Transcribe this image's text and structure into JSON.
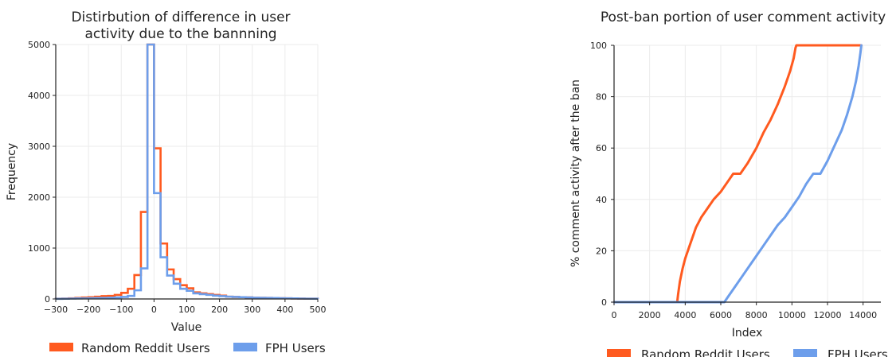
{
  "chart_data": [
    {
      "type": "histogram",
      "title_lines": [
        "Distirbution of difference in user",
        "activity due to the bannning"
      ],
      "xlabel": "Value",
      "ylabel": "Frequency",
      "xlim": [
        -300,
        500
      ],
      "ylim": [
        0,
        5000
      ],
      "xticks": [
        -300,
        -200,
        -100,
        0,
        100,
        200,
        300,
        400,
        500
      ],
      "xtick_labels": [
        "−300",
        "−200",
        "−100",
        "0",
        "100",
        "200",
        "300",
        "400",
        "500"
      ],
      "yticks": [
        0,
        1000,
        2000,
        3000,
        4000,
        5000
      ],
      "grid": true,
      "legend_position": "below",
      "bin_edges": [
        -300,
        -280,
        -260,
        -240,
        -220,
        -200,
        -180,
        -160,
        -140,
        -120,
        -100,
        -80,
        -60,
        -40,
        -20,
        0,
        20,
        40,
        60,
        80,
        100,
        120,
        140,
        160,
        180,
        200,
        220,
        240,
        260,
        280,
        300,
        320,
        340,
        360,
        380,
        400,
        420,
        440,
        460,
        480,
        500
      ],
      "series": [
        {
          "name": "Random Reddit Users",
          "color": "#ff5a1f",
          "values": [
            5,
            8,
            12,
            20,
            28,
            35,
            45,
            55,
            60,
            80,
            120,
            200,
            470,
            1710,
            5000,
            2960,
            1090,
            580,
            390,
            270,
            210,
            130,
            110,
            95,
            80,
            65,
            45,
            40,
            35,
            30,
            25,
            22,
            20,
            18,
            15,
            12,
            10,
            8,
            6,
            5
          ]
        },
        {
          "name": "FPH Users",
          "color": "#6d9eeb",
          "values": [
            3,
            5,
            8,
            10,
            12,
            15,
            18,
            20,
            25,
            30,
            40,
            60,
            170,
            600,
            5000,
            2080,
            820,
            460,
            300,
            200,
            160,
            110,
            95,
            80,
            65,
            55,
            45,
            40,
            35,
            30,
            25,
            22,
            20,
            18,
            15,
            12,
            10,
            8,
            6,
            5
          ]
        }
      ]
    },
    {
      "type": "line",
      "title": "Post-ban portion of user comment activity",
      "xlabel": "Index",
      "ylabel": "% comment activity after the ban",
      "xlim": [
        0,
        15000
      ],
      "ylim": [
        0,
        100
      ],
      "xticks": [
        0,
        2000,
        4000,
        6000,
        8000,
        10000,
        12000,
        14000
      ],
      "yticks": [
        0,
        20,
        40,
        60,
        80,
        100
      ],
      "grid": true,
      "legend_position": "below",
      "series": [
        {
          "name": "Random Reddit Users",
          "color": "#ff5a1f",
          "x": [
            0,
            3550,
            3600,
            3700,
            3850,
            4000,
            4200,
            4400,
            4600,
            4900,
            5300,
            5600,
            6000,
            6400,
            6700,
            7100,
            7500,
            8000,
            8400,
            8800,
            9200,
            9600,
            9900,
            10100,
            10200,
            10250,
            11000,
            12000,
            13000,
            13900
          ],
          "y": [
            0,
            0,
            3,
            8,
            13,
            17,
            21,
            25,
            29,
            33,
            37,
            40,
            43,
            47,
            50,
            50,
            54,
            60,
            66,
            71,
            77,
            84,
            90,
            95,
            99,
            100,
            100,
            100,
            100,
            100
          ]
        },
        {
          "name": "FPH Users",
          "color": "#6d9eeb",
          "x": [
            0,
            6200,
            6400,
            6800,
            7200,
            7600,
            8000,
            8400,
            8800,
            9200,
            9600,
            10000,
            10400,
            10800,
            11200,
            11600,
            12000,
            12400,
            12800,
            13100,
            13400,
            13600,
            13750,
            13850,
            13900
          ],
          "y": [
            0,
            0,
            2,
            6,
            10,
            14,
            18,
            22,
            26,
            30,
            33,
            37,
            41,
            46,
            50,
            50,
            55,
            61,
            67,
            73,
            80,
            86,
            92,
            97,
            100
          ]
        }
      ]
    }
  ]
}
